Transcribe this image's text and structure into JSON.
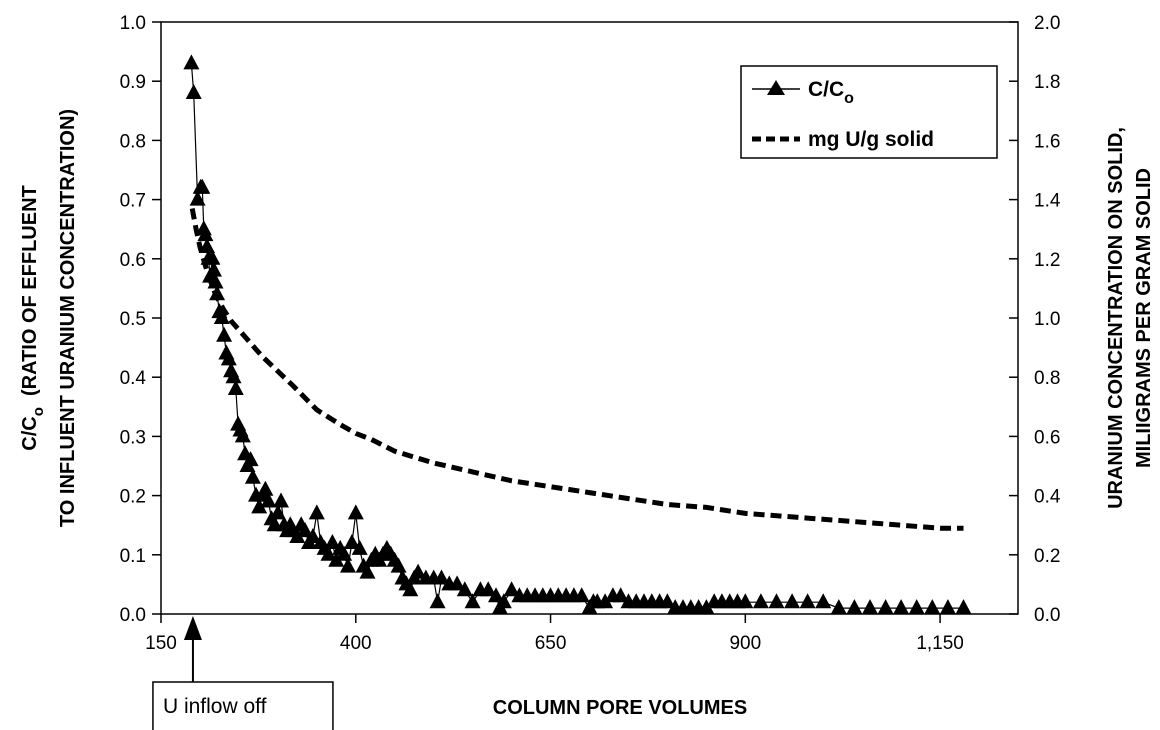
{
  "chart_data": {
    "type": "line",
    "title": "",
    "xlabel": "COLUMN PORE VOLUMES",
    "ylabel_left": {
      "line1_prefix": "C/C",
      "line1_sub": "o",
      "line1_suffix": "  (RATIO OF EFFLUENT",
      "line2": "TO INFLUENT URANIUM CONCENTRATION)"
    },
    "ylabel_right": {
      "line1": "URANIUM CONCENTRATION ON SOLID,",
      "line2": "MILIIGRAMS PER GRAM SOLID"
    },
    "xlim": [
      150,
      1250
    ],
    "ylim_left": [
      0,
      1.0
    ],
    "ylim_right": [
      0,
      2.0
    ],
    "x_ticks": [
      150,
      400,
      650,
      900,
      1150
    ],
    "x_tick_labels": [
      "150",
      "400",
      "650",
      "900",
      "1,150"
    ],
    "y_left_ticks": [
      0,
      0.1,
      0.2,
      0.3,
      0.4,
      0.5,
      0.6,
      0.7,
      0.8,
      0.9,
      1.0
    ],
    "y_left_tick_labels": [
      "0.0",
      "0.1",
      "0.2",
      "0.3",
      "0.4",
      "0.5",
      "0.6",
      "0.7",
      "0.8",
      "0.9",
      "1.0"
    ],
    "y_right_ticks": [
      0,
      0.2,
      0.4,
      0.6,
      0.8,
      1.0,
      1.2,
      1.4,
      1.6,
      1.8,
      2.0
    ],
    "y_right_tick_labels": [
      "0.0",
      "0.2",
      "0.4",
      "0.6",
      "0.8",
      "1.0",
      "1.2",
      "1.4",
      "1.6",
      "1.8",
      "2.0"
    ],
    "grid": false,
    "legend_position": "top-right",
    "legend": [
      {
        "prefix": "C/C",
        "sub": "o",
        "marker": "triangle",
        "line": "solid"
      },
      {
        "prefix": "mg U/g solid",
        "sub": "",
        "marker": "none",
        "line": "dashed"
      }
    ],
    "annotation": {
      "text": "U inflow off",
      "x": 191
    },
    "series": [
      {
        "axis": "left",
        "style": "line-triangle",
        "x": [
          189,
          192,
          197,
          201,
          203,
          205,
          207,
          209,
          211,
          213,
          216,
          218,
          220,
          222,
          225,
          228,
          231,
          234,
          237,
          240,
          243,
          246,
          249,
          252,
          255,
          258,
          261,
          265,
          268,
          272,
          276,
          280,
          284,
          288,
          292,
          296,
          300,
          304,
          308,
          312,
          316,
          320,
          325,
          330,
          335,
          340,
          345,
          350,
          355,
          360,
          365,
          370,
          375,
          380,
          385,
          390,
          395,
          400,
          405,
          410,
          415,
          420,
          425,
          430,
          435,
          440,
          445,
          450,
          455,
          460,
          465,
          470,
          475,
          480,
          490,
          500,
          505,
          510,
          520,
          530,
          540,
          550,
          560,
          570,
          580,
          585,
          590,
          600,
          610,
          620,
          630,
          640,
          650,
          660,
          670,
          680,
          690,
          700,
          705,
          710,
          720,
          730,
          740,
          750,
          760,
          770,
          780,
          790,
          800,
          810,
          820,
          830,
          840,
          850,
          860,
          870,
          880,
          890,
          900,
          920,
          940,
          960,
          980,
          1000,
          1020,
          1040,
          1060,
          1080,
          1100,
          1120,
          1140,
          1160,
          1180
        ],
        "y": [
          0.93,
          0.88,
          0.7,
          0.72,
          0.72,
          0.65,
          0.64,
          0.62,
          0.6,
          0.57,
          0.6,
          0.58,
          0.56,
          0.54,
          0.51,
          0.5,
          0.47,
          0.44,
          0.43,
          0.41,
          0.4,
          0.38,
          0.32,
          0.31,
          0.3,
          0.27,
          0.25,
          0.26,
          0.23,
          0.2,
          0.18,
          0.2,
          0.21,
          0.19,
          0.16,
          0.15,
          0.17,
          0.19,
          0.15,
          0.14,
          0.15,
          0.14,
          0.13,
          0.15,
          0.14,
          0.12,
          0.13,
          0.17,
          0.12,
          0.11,
          0.1,
          0.12,
          0.09,
          0.11,
          0.1,
          0.08,
          0.12,
          0.17,
          0.11,
          0.08,
          0.07,
          0.09,
          0.1,
          0.09,
          0.1,
          0.11,
          0.1,
          0.09,
          0.08,
          0.06,
          0.05,
          0.04,
          0.06,
          0.07,
          0.06,
          0.06,
          0.02,
          0.06,
          0.05,
          0.05,
          0.04,
          0.02,
          0.04,
          0.04,
          0.03,
          0.01,
          0.02,
          0.04,
          0.03,
          0.03,
          0.03,
          0.03,
          0.03,
          0.03,
          0.03,
          0.03,
          0.03,
          0.01,
          0.02,
          0.02,
          0.02,
          0.03,
          0.03,
          0.02,
          0.02,
          0.02,
          0.02,
          0.02,
          0.02,
          0.01,
          0.01,
          0.01,
          0.01,
          0.01,
          0.02,
          0.02,
          0.02,
          0.02,
          0.02,
          0.02,
          0.02,
          0.02,
          0.02,
          0.02,
          0.01,
          0.01,
          0.01,
          0.01,
          0.01,
          0.01,
          0.01,
          0.01,
          0.01
        ]
      },
      {
        "axis": "right",
        "style": "dashed",
        "x": [
          190,
          195,
          200,
          210,
          220,
          230,
          240,
          260,
          280,
          300,
          320,
          350,
          380,
          400,
          420,
          450,
          500,
          550,
          600,
          650,
          700,
          750,
          800,
          850,
          900,
          950,
          1000,
          1050,
          1100,
          1150,
          1180
        ],
        "y": [
          1.37,
          1.3,
          1.24,
          1.15,
          1.08,
          1.03,
          0.99,
          0.93,
          0.87,
          0.82,
          0.77,
          0.69,
          0.64,
          0.61,
          0.59,
          0.55,
          0.51,
          0.48,
          0.45,
          0.43,
          0.41,
          0.39,
          0.37,
          0.36,
          0.34,
          0.33,
          0.32,
          0.31,
          0.3,
          0.29,
          0.29
        ]
      }
    ]
  }
}
